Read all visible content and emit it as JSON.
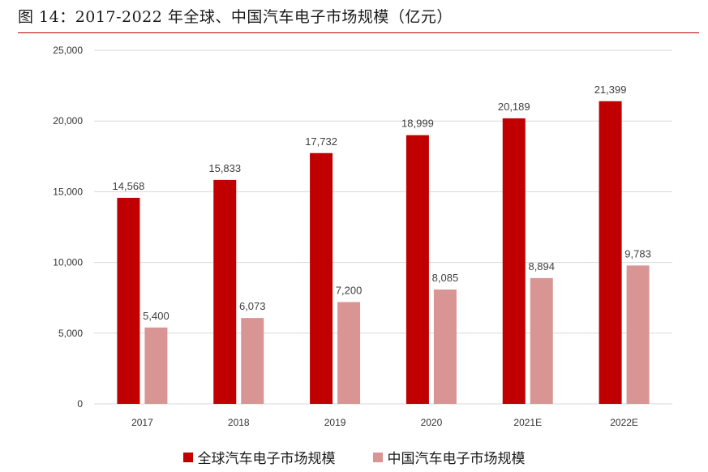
{
  "figure_title": "图 14：2017-2022 年全球、中国汽车电子市场规模（亿元）",
  "colors": {
    "global": "#c00000",
    "china": "#d99594",
    "grid": "#d9d9d9",
    "title_rule": "#c00000"
  },
  "chart_data": {
    "type": "bar",
    "title": "2017-2022 年全球、中国汽车电子市场规模（亿元）",
    "xlabel": "",
    "ylabel": "",
    "ylim": [
      0,
      25000
    ],
    "yticks": [
      0,
      5000,
      10000,
      15000,
      20000,
      25000
    ],
    "ytick_labels": [
      "0",
      "5,000",
      "10,000",
      "15,000",
      "20,000",
      "25,000"
    ],
    "grid": true,
    "legend_position": "bottom",
    "categories": [
      "2017",
      "2018",
      "2019",
      "2020",
      "2021E",
      "2022E"
    ],
    "series": [
      {
        "name": "全球汽车电子市场规模",
        "values": [
          14568,
          15833,
          17732,
          18999,
          20189,
          21399
        ],
        "labels": [
          "14,568",
          "15,833",
          "17,732",
          "18,999",
          "20,189",
          "21,399"
        ]
      },
      {
        "name": "中国汽车电子市场规模",
        "values": [
          5400,
          6073,
          7200,
          8085,
          8894,
          9783
        ],
        "labels": [
          "5,400",
          "6,073",
          "7,200",
          "8,085",
          "8,894",
          "9,783"
        ]
      }
    ]
  }
}
